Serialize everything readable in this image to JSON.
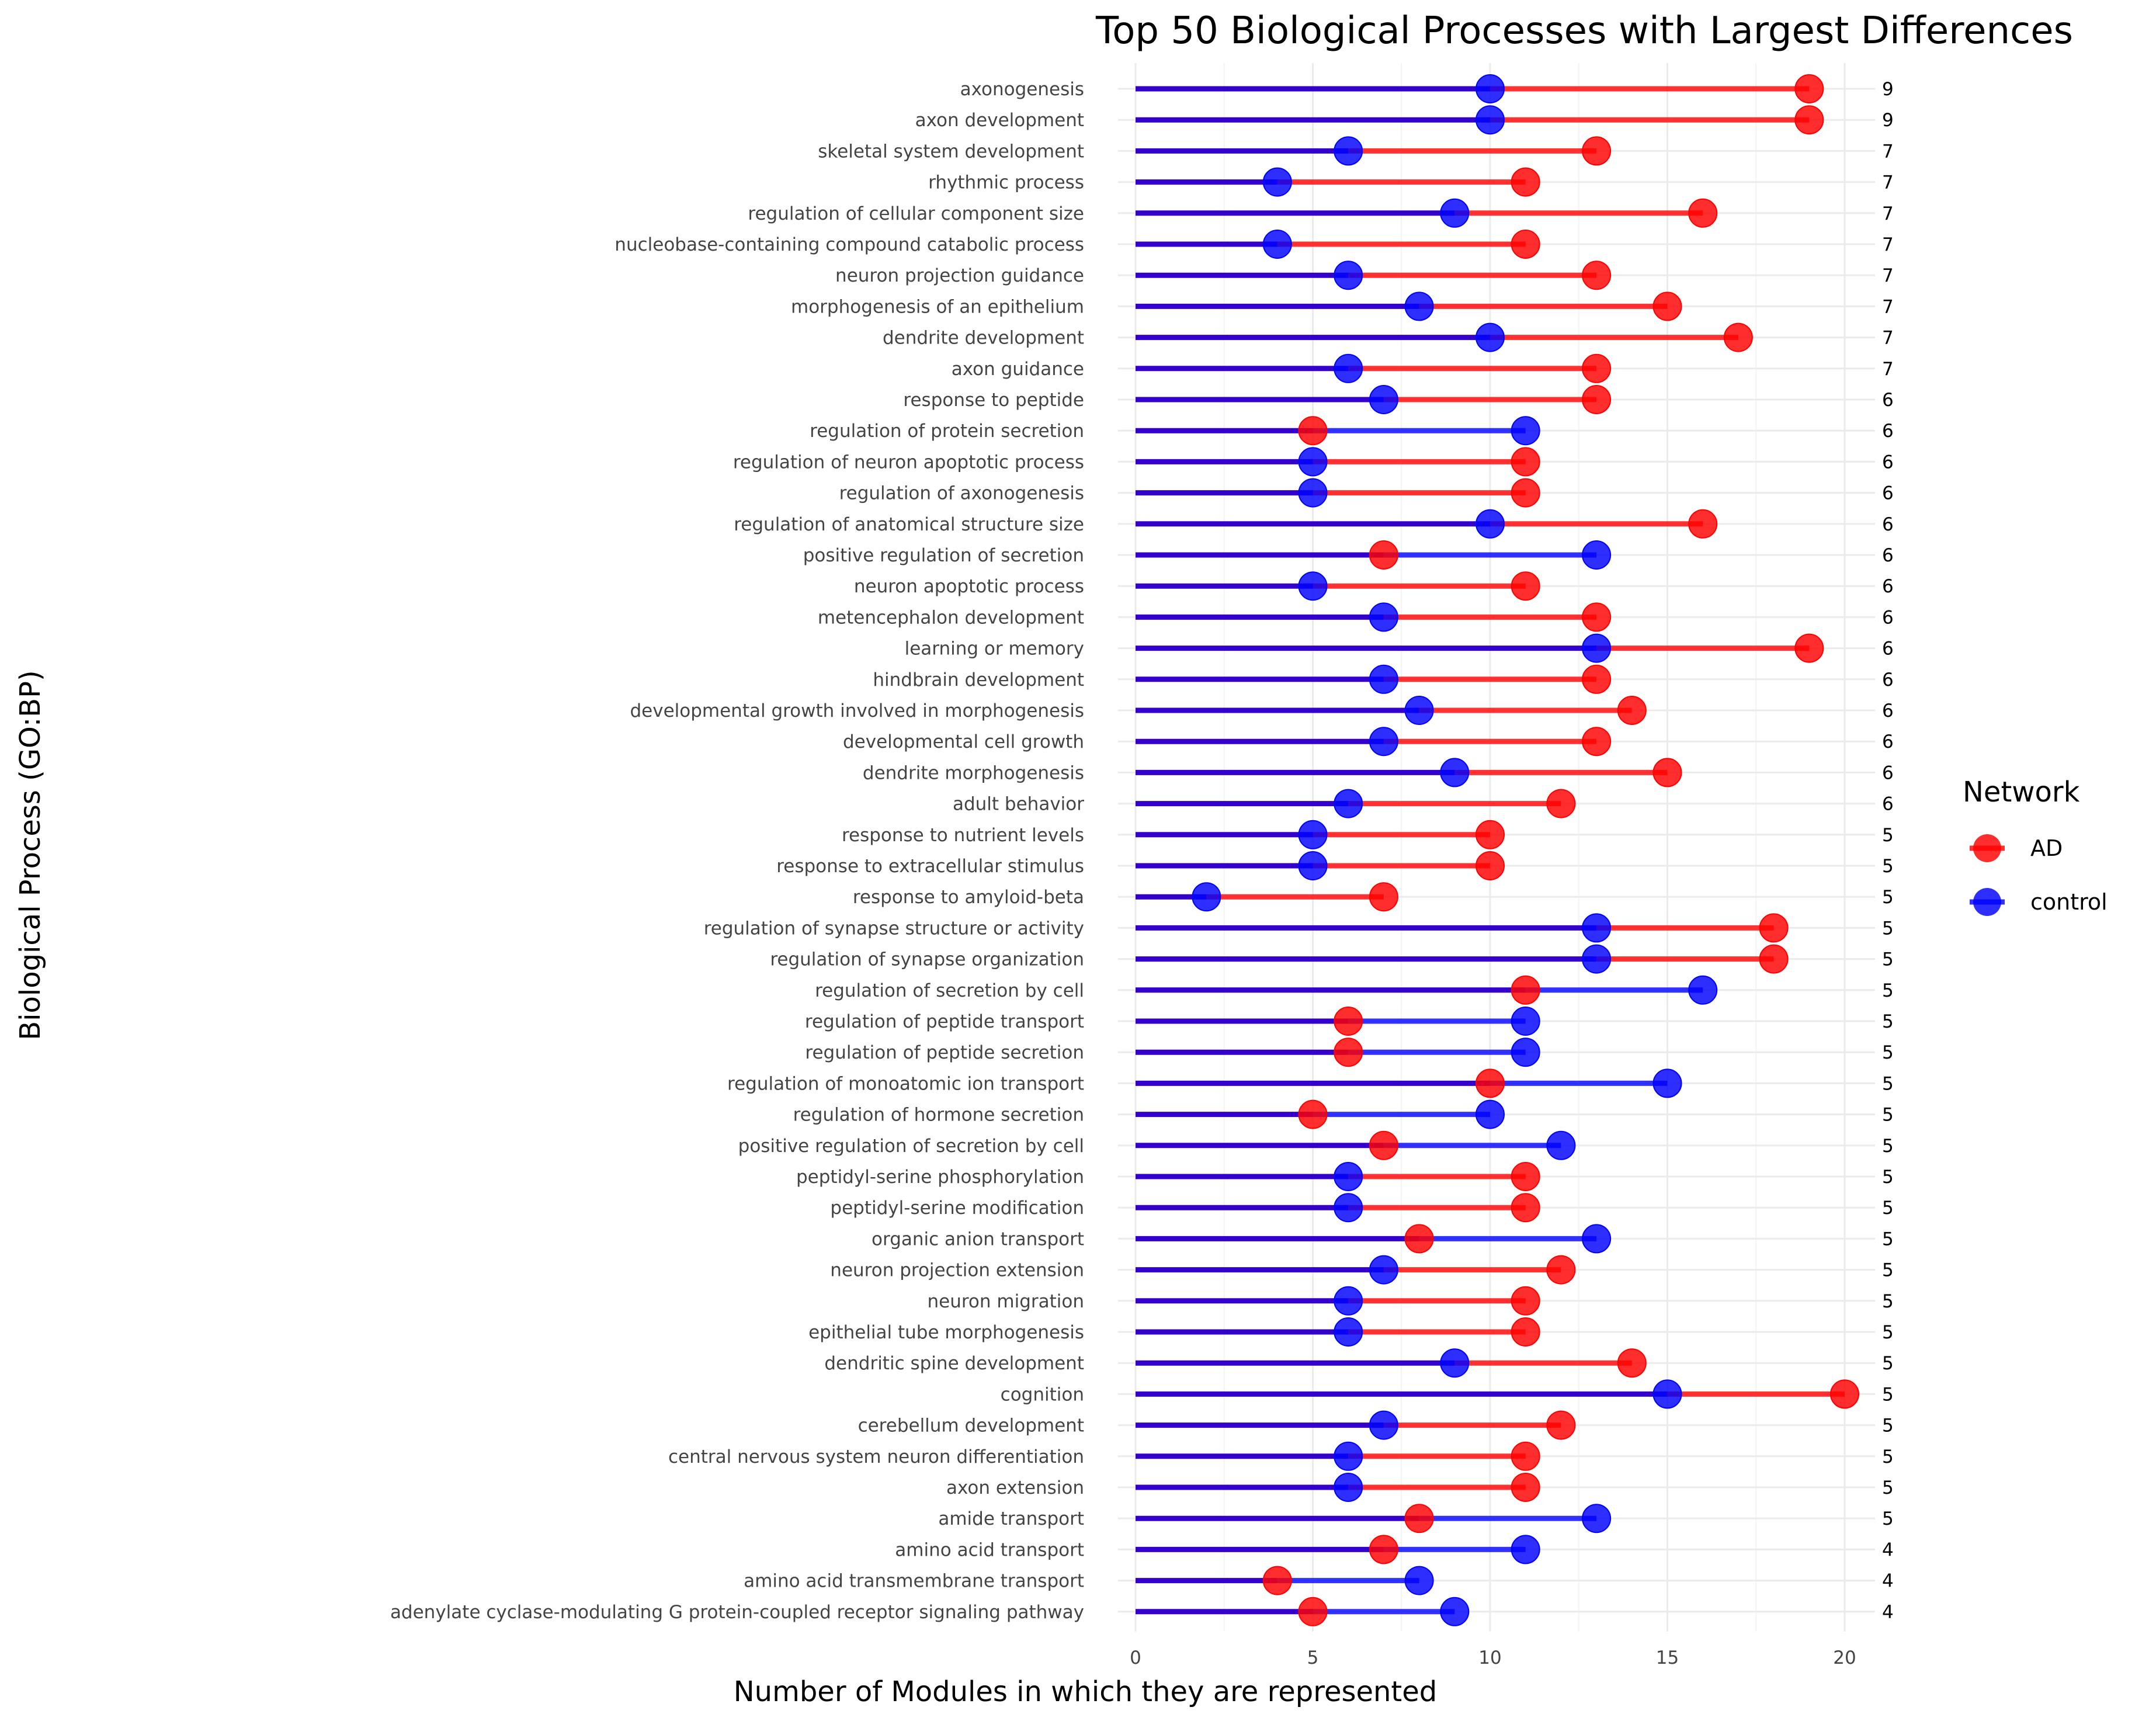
{
  "chart_data": {
    "type": "dumbbell",
    "title": "Top 50 Biological Processes with Largest Differences",
    "xlabel": "Number of Modules in which they are represented",
    "ylabel": "Biological Process (GO:BP)",
    "xlim": [
      0,
      20
    ],
    "xticks": [
      0,
      5,
      10,
      15,
      20
    ],
    "legend": {
      "title": "Network",
      "position": "right",
      "entries": [
        {
          "name": "AD",
          "color": "#ff0000"
        },
        {
          "name": "control",
          "color": "#0000ff"
        }
      ]
    },
    "colors": {
      "ad": "#ff0000",
      "control": "#0000ff",
      "segment_base": "#3300cc"
    },
    "categories": [
      "axonogenesis",
      "axon development",
      "skeletal system development",
      "rhythmic process",
      "regulation of cellular component size",
      "nucleobase-containing compound catabolic process",
      "neuron projection guidance",
      "morphogenesis of an epithelium",
      "dendrite development",
      "axon guidance",
      "response to peptide",
      "regulation of protein secretion",
      "regulation of neuron apoptotic process",
      "regulation of axonogenesis",
      "regulation of anatomical structure size",
      "positive regulation of secretion",
      "neuron apoptotic process",
      "metencephalon development",
      "learning or memory",
      "hindbrain development",
      "developmental growth involved in morphogenesis",
      "developmental cell growth",
      "dendrite morphogenesis",
      "adult behavior",
      "response to nutrient levels",
      "response to extracellular stimulus",
      "response to amyloid-beta",
      "regulation of synapse structure or activity",
      "regulation of synapse organization",
      "regulation of secretion by cell",
      "regulation of peptide transport",
      "regulation of peptide secretion",
      "regulation of monoatomic ion transport",
      "regulation of hormone secretion",
      "positive regulation of secretion by cell",
      "peptidyl-serine phosphorylation",
      "peptidyl-serine modification",
      "organic anion transport",
      "neuron projection extension",
      "neuron migration",
      "epithelial tube morphogenesis",
      "dendritic spine development",
      "cognition",
      "cerebellum development",
      "central nervous system neuron differentiation",
      "axon extension",
      "amide transport",
      "amino acid transport",
      "amino acid transmembrane transport",
      "adenylate cyclase-modulating G protein-coupled receptor signaling pathway"
    ],
    "series": [
      {
        "name": "AD",
        "values": [
          19,
          19,
          13,
          11,
          16,
          11,
          13,
          15,
          17,
          13,
          13,
          5,
          11,
          11,
          16,
          7,
          11,
          13,
          19,
          13,
          14,
          13,
          15,
          12,
          10,
          10,
          7,
          18,
          18,
          11,
          6,
          6,
          10,
          5,
          7,
          11,
          11,
          8,
          12,
          11,
          11,
          14,
          20,
          12,
          11,
          11,
          8,
          7,
          4,
          5
        ]
      },
      {
        "name": "control",
        "values": [
          10,
          10,
          6,
          4,
          9,
          4,
          6,
          8,
          10,
          6,
          7,
          11,
          5,
          5,
          10,
          13,
          5,
          7,
          13,
          7,
          8,
          7,
          9,
          6,
          5,
          5,
          2,
          13,
          13,
          16,
          11,
          11,
          15,
          10,
          12,
          6,
          6,
          13,
          7,
          6,
          6,
          9,
          15,
          7,
          6,
          6,
          13,
          11,
          8,
          9
        ]
      }
    ],
    "differences": [
      9,
      9,
      7,
      7,
      7,
      7,
      7,
      7,
      7,
      7,
      6,
      6,
      6,
      6,
      6,
      6,
      6,
      6,
      6,
      6,
      6,
      6,
      6,
      6,
      5,
      5,
      5,
      5,
      5,
      5,
      5,
      5,
      5,
      5,
      5,
      5,
      5,
      5,
      5,
      5,
      5,
      5,
      5,
      5,
      5,
      5,
      5,
      4,
      4,
      4
    ]
  }
}
